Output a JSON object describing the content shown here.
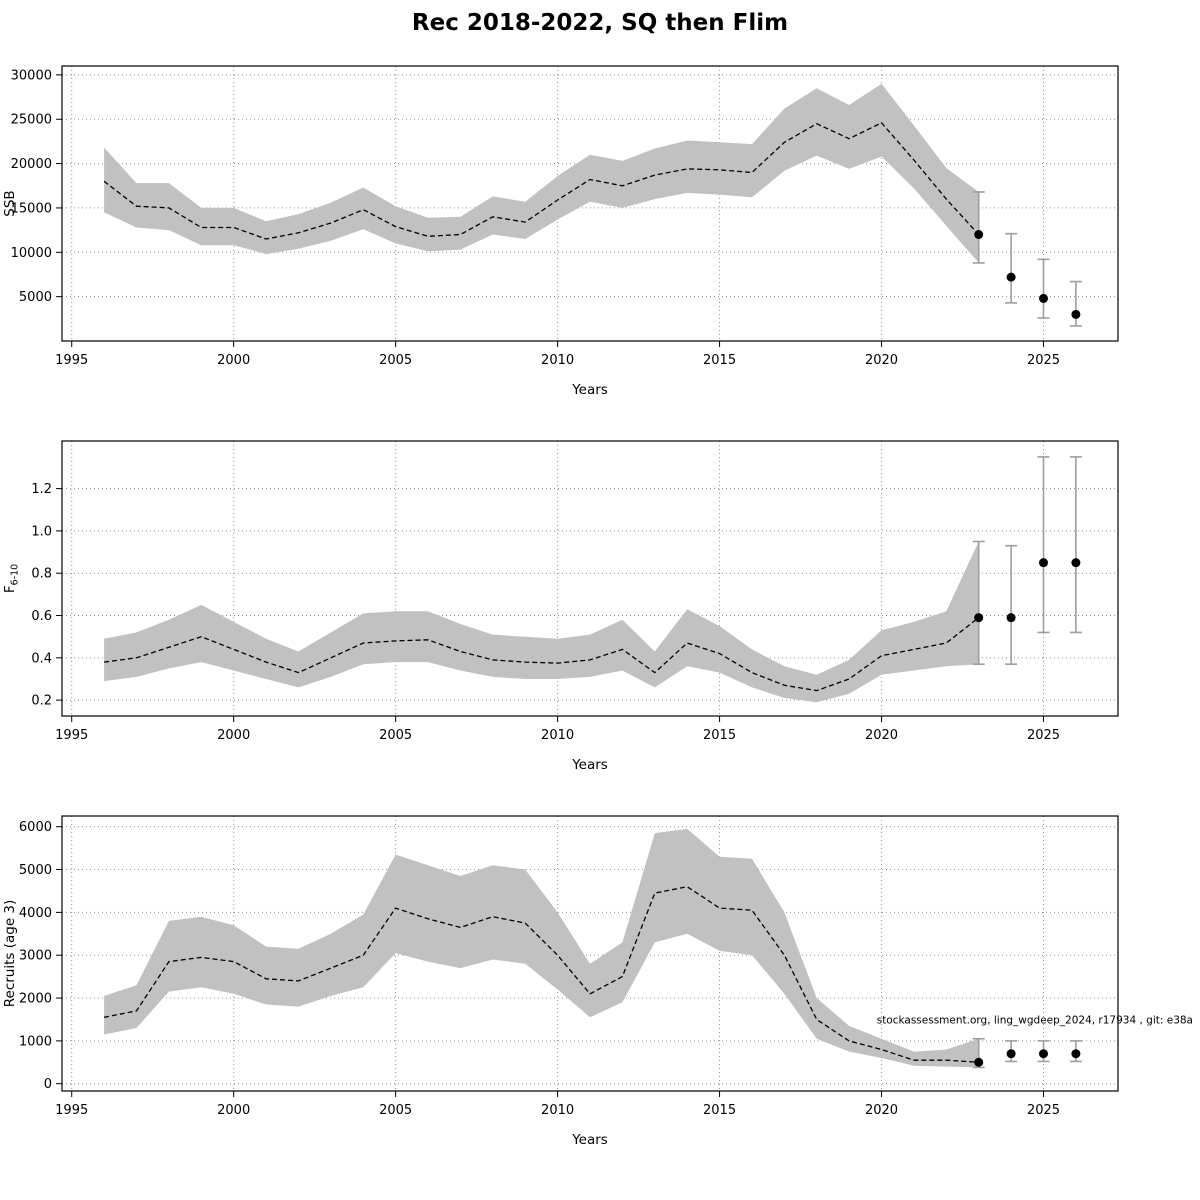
{
  "title": "Rec 2018-2022, SQ then Flim",
  "footnote": "stockassessment.org, ling_wgdeep_2024, r17934 , git: e38a",
  "chart_data": [
    {
      "id": "ssb",
      "type": "area",
      "title": "",
      "xlabel": "Years",
      "ylabel": "SSB",
      "xlim": [
        1994.7,
        2027.3
      ],
      "ylim": [
        0,
        31000
      ],
      "xticks": [
        1995,
        2000,
        2005,
        2010,
        2015,
        2020,
        2025
      ],
      "xticklabels": [
        "1995",
        "2000",
        "2005",
        "2010",
        "2015",
        "2020",
        "2025"
      ],
      "yticks": [
        5000,
        10000,
        15000,
        20000,
        25000,
        30000
      ],
      "yticklabels": [
        "5000",
        "10000",
        "15000",
        "20000",
        "25000",
        "30000"
      ],
      "grid": true,
      "x": [
        1996,
        1997,
        1998,
        1999,
        2000,
        2001,
        2002,
        2003,
        2004,
        2005,
        2006,
        2007,
        2008,
        2009,
        2010,
        2011,
        2012,
        2013,
        2014,
        2015,
        2016,
        2017,
        2018,
        2019,
        2020,
        2021,
        2022,
        2023
      ],
      "line": [
        18000,
        15200,
        15000,
        12800,
        12800,
        11500,
        12200,
        13300,
        14800,
        12900,
        11800,
        12000,
        14000,
        13400,
        15900,
        18200,
        17500,
        18700,
        19400,
        19300,
        19000,
        22400,
        24500,
        22800,
        24600,
        20400,
        16000,
        12000
      ],
      "lower": [
        14500,
        12800,
        12500,
        10800,
        10800,
        9800,
        10400,
        11300,
        12600,
        11000,
        10100,
        10300,
        12000,
        11500,
        13700,
        15700,
        15000,
        16000,
        16700,
        16500,
        16200,
        19200,
        20900,
        19400,
        20800,
        17200,
        13000,
        8800
      ],
      "upper": [
        21800,
        17800,
        17800,
        15000,
        15000,
        13500,
        14300,
        15600,
        17300,
        15200,
        13900,
        14000,
        16300,
        15700,
        18600,
        21000,
        20300,
        21700,
        22600,
        22400,
        22200,
        26200,
        28500,
        26600,
        29000,
        24300,
        19500,
        16800
      ],
      "forecast": {
        "x": [
          2023,
          2024,
          2025,
          2026
        ],
        "y": [
          12000,
          7200,
          4800,
          3000
        ],
        "lo": [
          8800,
          4300,
          2600,
          1700
        ],
        "hi": [
          16800,
          12100,
          9200,
          6700
        ]
      }
    },
    {
      "id": "fbar",
      "type": "area",
      "title": "",
      "xlabel": "Years",
      "ylabel": "F",
      "ylabel_sub": "6-10",
      "xlim": [
        1994.7,
        2027.3
      ],
      "ylim": [
        0.125,
        1.425
      ],
      "xticks": [
        1995,
        2000,
        2005,
        2010,
        2015,
        2020,
        2025
      ],
      "xticklabels": [
        "1995",
        "2000",
        "2005",
        "2010",
        "2015",
        "2020",
        "2025"
      ],
      "yticks": [
        0.2,
        0.4,
        0.6,
        0.8,
        1.0,
        1.2
      ],
      "yticklabels": [
        "0.2",
        "0.4",
        "0.6",
        "0.8",
        "1.0",
        "1.2"
      ],
      "grid": true,
      "x": [
        1996,
        1997,
        1998,
        1999,
        2000,
        2001,
        2002,
        2003,
        2004,
        2005,
        2006,
        2007,
        2008,
        2009,
        2010,
        2011,
        2012,
        2013,
        2014,
        2015,
        2016,
        2017,
        2018,
        2019,
        2020,
        2021,
        2022,
        2023
      ],
      "line": [
        0.38,
        0.4,
        0.45,
        0.5,
        0.44,
        0.38,
        0.33,
        0.4,
        0.47,
        0.48,
        0.485,
        0.43,
        0.39,
        0.38,
        0.375,
        0.39,
        0.44,
        0.33,
        0.47,
        0.42,
        0.33,
        0.27,
        0.245,
        0.3,
        0.41,
        0.44,
        0.47,
        0.59
      ],
      "lower": [
        0.29,
        0.31,
        0.35,
        0.38,
        0.34,
        0.3,
        0.26,
        0.31,
        0.37,
        0.38,
        0.38,
        0.34,
        0.31,
        0.3,
        0.3,
        0.31,
        0.34,
        0.26,
        0.36,
        0.33,
        0.26,
        0.21,
        0.19,
        0.23,
        0.32,
        0.34,
        0.36,
        0.37
      ],
      "upper": [
        0.49,
        0.52,
        0.58,
        0.65,
        0.57,
        0.49,
        0.43,
        0.52,
        0.61,
        0.62,
        0.62,
        0.56,
        0.51,
        0.5,
        0.49,
        0.51,
        0.58,
        0.43,
        0.63,
        0.55,
        0.44,
        0.36,
        0.32,
        0.39,
        0.53,
        0.57,
        0.62,
        0.95
      ],
      "forecast": {
        "x": [
          2023,
          2024,
          2025,
          2026
        ],
        "y": [
          0.59,
          0.59,
          0.85,
          0.85
        ],
        "lo": [
          0.37,
          0.37,
          0.52,
          0.52
        ],
        "hi": [
          0.95,
          0.93,
          1.35,
          1.35
        ]
      }
    },
    {
      "id": "recruits",
      "type": "area",
      "title": "",
      "xlabel": "Years",
      "ylabel": "Recruits (age 3)",
      "xlim": [
        1994.7,
        2027.3
      ],
      "ylim": [
        -170,
        6250
      ],
      "xticks": [
        1995,
        2000,
        2005,
        2010,
        2015,
        2020,
        2025
      ],
      "xticklabels": [
        "1995",
        "2000",
        "2005",
        "2010",
        "2015",
        "2020",
        "2025"
      ],
      "yticks": [
        0,
        1000,
        2000,
        3000,
        4000,
        5000,
        6000
      ],
      "yticklabels": [
        "0",
        "1000",
        "2000",
        "3000",
        "4000",
        "5000",
        "6000"
      ],
      "grid": true,
      "has_footnote": true,
      "footnote_y": 1400,
      "x": [
        1996,
        1997,
        1998,
        1999,
        2000,
        2001,
        2002,
        2003,
        2004,
        2005,
        2006,
        2007,
        2008,
        2009,
        2010,
        2011,
        2012,
        2013,
        2014,
        2015,
        2016,
        2017,
        2018,
        2019,
        2020,
        2021,
        2022,
        2023
      ],
      "line": [
        1550,
        1700,
        2850,
        2950,
        2850,
        2450,
        2400,
        2700,
        3000,
        4100,
        3850,
        3650,
        3900,
        3750,
        3000,
        2100,
        2500,
        4450,
        4600,
        4100,
        4050,
        3000,
        1500,
        1000,
        800,
        550,
        550,
        500
      ],
      "lower": [
        1150,
        1300,
        2150,
        2250,
        2100,
        1850,
        1800,
        2050,
        2250,
        3050,
        2850,
        2700,
        2900,
        2800,
        2200,
        1550,
        1900,
        3300,
        3500,
        3100,
        3000,
        2100,
        1050,
        750,
        600,
        420,
        400,
        380
      ],
      "upper": [
        2050,
        2300,
        3800,
        3900,
        3700,
        3200,
        3150,
        3500,
        3950,
        5350,
        5100,
        4850,
        5100,
        5000,
        4000,
        2800,
        3300,
        5850,
        5950,
        5300,
        5250,
        4000,
        2000,
        1350,
        1050,
        750,
        800,
        1050
      ],
      "forecast": {
        "x": [
          2023,
          2024,
          2025,
          2026
        ],
        "y": [
          500,
          700,
          700,
          700
        ],
        "lo": [
          380,
          520,
          520,
          520
        ],
        "hi": [
          1050,
          1000,
          1000,
          1000
        ]
      }
    }
  ],
  "colors": {
    "band": "#c1c1c1",
    "line": "#000000",
    "grid": "#8f8f8f",
    "whisker": "#9e9e9e",
    "point": "#000000"
  }
}
